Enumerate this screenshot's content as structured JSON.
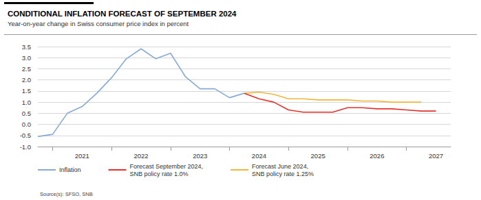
{
  "chart_data": {
    "type": "line",
    "title": "CONDITIONAL INFLATION FORECAST OF SEPTEMBER 2024",
    "subtitle": "Year-on-year change in Swiss consumer price index in percent",
    "source": "Source(s): SFSO, SNB",
    "categories": [
      null,
      null,
      null,
      "2021",
      null,
      null,
      null,
      "2022",
      null,
      null,
      null,
      "2023",
      null,
      null,
      null,
      "2024",
      null,
      null,
      null,
      "2025",
      null,
      null,
      null,
      "2026",
      null,
      null,
      null,
      "2027",
      null
    ],
    "series": [
      {
        "name": "Inflation",
        "color": "#86aad2",
        "values": [
          -0.55,
          -0.45,
          0.5,
          0.8,
          1.4,
          2.1,
          2.95,
          3.4,
          2.95,
          3.2,
          2.15,
          1.6,
          1.6,
          1.2,
          1.4,
          null,
          null,
          null,
          null,
          null,
          null,
          null,
          null,
          null,
          null,
          null,
          null,
          null,
          null
        ]
      },
      {
        "name": "Forecast September 2024,\nSNB policy rate 1.0%",
        "color": "#e2302b",
        "values": [
          null,
          null,
          null,
          null,
          null,
          null,
          null,
          null,
          null,
          null,
          null,
          null,
          null,
          null,
          1.4,
          1.15,
          1.0,
          0.65,
          0.55,
          0.55,
          0.55,
          0.75,
          0.75,
          0.7,
          0.7,
          0.65,
          0.6,
          0.6,
          null
        ]
      },
      {
        "name": "Forecast June 2024,\nSNB policy rate 1.25%",
        "color": "#f2b53a",
        "values": [
          null,
          null,
          null,
          null,
          null,
          null,
          null,
          null,
          null,
          null,
          null,
          null,
          null,
          null,
          1.4,
          1.45,
          1.35,
          1.15,
          1.15,
          1.1,
          1.1,
          1.1,
          1.05,
          1.05,
          1.0,
          1.0,
          1.0,
          null,
          null
        ]
      }
    ],
    "ylim": [
      -1,
      3.5
    ],
    "yticks": [
      {
        "value": -1,
        "label": "-1.0"
      },
      {
        "value": -0.5,
        "label": "-0.5"
      },
      {
        "value": 0,
        "label": "0.0"
      },
      {
        "value": 0.5,
        "label": "0.5"
      },
      {
        "value": 1,
        "label": "1.0"
      },
      {
        "value": 1.5,
        "label": "1.5"
      },
      {
        "value": 2,
        "label": "2.0"
      },
      {
        "value": 2.5,
        "label": "2.5"
      },
      {
        "value": 3,
        "label": "3.0"
      },
      {
        "value": 3.5,
        "label": "3.5"
      }
    ],
    "grid": true,
    "legend": "bottom"
  }
}
